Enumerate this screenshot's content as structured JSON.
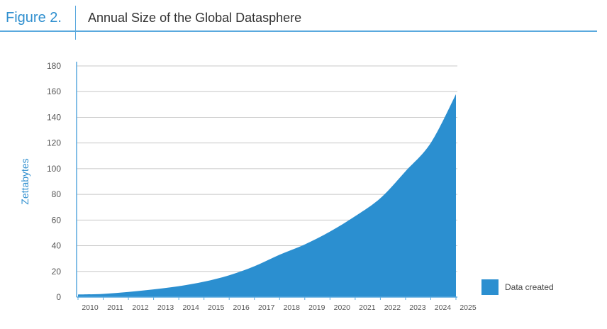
{
  "header": {
    "figure_label": "Figure 2.",
    "title": "Annual Size of the Global Datasphere"
  },
  "colors": {
    "accent": "#2f8fcf",
    "area_fill": "#2b8fd0",
    "grid": "#c8c8c8",
    "axis_text": "#555555",
    "rule": "#5aa9de"
  },
  "chart_data": {
    "type": "area",
    "title": "Annual Size of the Global Datasphere",
    "xlabel": "",
    "ylabel": "Zettabytes",
    "categories": [
      "2010",
      "2011",
      "2012",
      "2013",
      "2014",
      "2015",
      "2016",
      "2017",
      "2018",
      "2019",
      "2020",
      "2021",
      "2022",
      "2023",
      "2024",
      "2025"
    ],
    "series": [
      {
        "name": "Data created",
        "values": [
          2,
          2.5,
          4,
          6,
          8.5,
          12,
          17,
          24,
          33,
          41,
          51,
          63,
          77,
          98,
          120,
          158
        ]
      }
    ],
    "ylim": [
      0,
      180
    ],
    "yticks": [
      0,
      20,
      40,
      60,
      80,
      100,
      120,
      140,
      160,
      180
    ],
    "grid": true,
    "legend": {
      "placement": "right",
      "entries": [
        "Data created"
      ]
    }
  }
}
